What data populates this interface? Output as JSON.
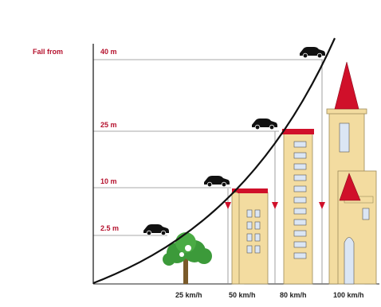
{
  "diagram": {
    "header_label": "Fall from",
    "heights": [
      {
        "label": "40 m"
      },
      {
        "label": "25 m"
      },
      {
        "label": "10 m"
      },
      {
        "label": "2.5 m"
      }
    ],
    "speeds": [
      {
        "label": "25 km/h"
      },
      {
        "label": "50 km/h"
      },
      {
        "label": "80 km/h"
      },
      {
        "label": "100 km/h"
      }
    ],
    "colors": {
      "accent_red": "#d0102a",
      "building_fill": "#f3dca0",
      "window_fill": "#dbe6f4",
      "tree_green": "#3c9a3a",
      "curve": "#111111",
      "guide_line": "#aaaaaa"
    },
    "icons": [
      "car-icon",
      "tree-icon",
      "building-icon",
      "tower-icon",
      "drop-arrow-icon"
    ]
  }
}
